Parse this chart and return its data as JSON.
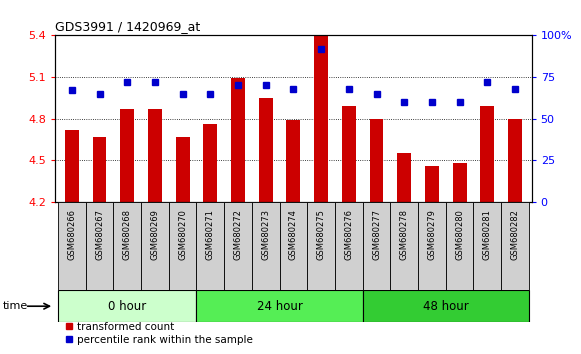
{
  "title": "GDS3991 / 1420969_at",
  "samples": [
    "GSM680266",
    "GSM680267",
    "GSM680268",
    "GSM680269",
    "GSM680270",
    "GSM680271",
    "GSM680272",
    "GSM680273",
    "GSM680274",
    "GSM680275",
    "GSM680276",
    "GSM680277",
    "GSM680278",
    "GSM680279",
    "GSM680280",
    "GSM680281",
    "GSM680282"
  ],
  "transformed_count": [
    4.72,
    4.67,
    4.87,
    4.87,
    4.67,
    4.76,
    5.09,
    4.95,
    4.79,
    5.4,
    4.89,
    4.8,
    4.55,
    4.46,
    4.48,
    4.89,
    4.8
  ],
  "percentile_rank": [
    67,
    65,
    72,
    72,
    65,
    65,
    70,
    70,
    68,
    92,
    68,
    65,
    60,
    60,
    60,
    72,
    68
  ],
  "groups": [
    {
      "label": "0 hour",
      "start": 0,
      "end": 5,
      "color": "#ccffcc"
    },
    {
      "label": "24 hour",
      "start": 5,
      "end": 11,
      "color": "#55ee55"
    },
    {
      "label": "48 hour",
      "start": 11,
      "end": 17,
      "color": "#33cc33"
    }
  ],
  "ylim_left": [
    4.2,
    5.4
  ],
  "ylim_right": [
    0,
    100
  ],
  "yticks_left": [
    4.2,
    4.5,
    4.8,
    5.1,
    5.4
  ],
  "yticks_right": [
    0,
    25,
    50,
    75,
    100
  ],
  "bar_color": "#cc0000",
  "dot_color": "#0000cc",
  "bar_width": 0.5,
  "sample_box_color": "#d0d0d0",
  "plot_bg": "#ffffff",
  "legend_red_label": "transformed count",
  "legend_blue_label": "percentile rank within the sample"
}
